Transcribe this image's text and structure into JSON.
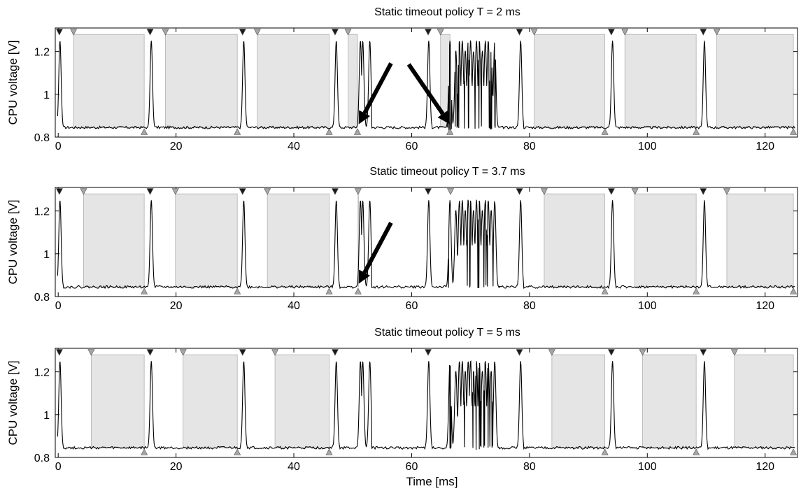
{
  "chart_data": [
    {
      "type": "line",
      "title": "Static timeout policy T = 2 ms",
      "ylabel": "CPU voltage [V]",
      "xlabel": "",
      "xlim": [
        -0.5,
        125.5
      ],
      "ylim": [
        0.8,
        1.31
      ],
      "x_ticks": [
        0,
        20,
        40,
        60,
        80,
        100,
        120
      ],
      "y_ticks": [
        0.8,
        1,
        1.2
      ],
      "baseline_voltage": 0.845,
      "peak_voltage": 1.25,
      "bursts": [
        {
          "start": -0.2,
          "end": 0.9,
          "peaks": [
            0.3
          ]
        },
        {
          "start": 15.1,
          "end": 16.4,
          "peaks": [
            15.8
          ]
        },
        {
          "start": 31.0,
          "end": 32.1,
          "peaks": [
            31.5
          ]
        },
        {
          "start": 46.6,
          "end": 47.8,
          "peaks": [
            47.2
          ]
        },
        {
          "start": 50.7,
          "end": 53.2,
          "peaks": [
            51.3,
            51.7,
            52.9
          ]
        },
        {
          "start": 62.4,
          "end": 63.5,
          "peaks": [
            62.9
          ]
        },
        {
          "start": 65.8,
          "end": 74.9,
          "peaks": [
            66.5,
            67.5,
            68.1,
            68.6,
            69.1,
            69.6,
            70.0,
            70.5,
            71.0,
            71.5,
            72.0,
            72.5,
            73.0,
            73.5,
            74.1
          ]
        },
        {
          "start": 77.9,
          "end": 79.0,
          "peaks": [
            78.5
          ]
        },
        {
          "start": 93.5,
          "end": 94.7,
          "peaks": [
            94.1
          ]
        },
        {
          "start": 109.1,
          "end": 110.3,
          "peaks": [
            109.7
          ]
        }
      ],
      "sleep_intervals": [
        [
          2.6,
          14.6
        ],
        [
          18.2,
          30.4
        ],
        [
          33.8,
          46.0
        ],
        [
          49.2,
          50.8
        ],
        [
          64.9,
          66.5
        ],
        [
          80.8,
          92.8
        ],
        [
          96.2,
          108.3
        ],
        [
          111.8,
          124.8
        ]
      ],
      "markers_top_dark": [
        0.2,
        15.6,
        31.3,
        47.0,
        62.8,
        78.3,
        93.9,
        109.5
      ],
      "markers_top_light": [
        2.6,
        18.2,
        33.8,
        49.2,
        64.9,
        80.8,
        96.2,
        111.8
      ],
      "markers_bottom": [
        14.6,
        30.4,
        46.0,
        50.8,
        66.5,
        92.8,
        108.3,
        124.8
      ],
      "arrows": [
        {
          "from": [
            56.5,
            1.145
          ],
          "to": [
            51.0,
            0.86
          ]
        },
        {
          "from": [
            59.5,
            1.14
          ],
          "to": [
            66.5,
            0.86
          ]
        }
      ]
    },
    {
      "type": "line",
      "title": "Static timeout policy T = 3.7 ms",
      "ylabel": "CPU voltage [V]",
      "xlabel": "",
      "xlim": [
        -0.5,
        125.5
      ],
      "ylim": [
        0.8,
        1.31
      ],
      "x_ticks": [
        0,
        20,
        40,
        60,
        80,
        100,
        120
      ],
      "y_ticks": [
        0.8,
        1,
        1.2
      ],
      "baseline_voltage": 0.845,
      "peak_voltage": 1.25,
      "bursts": [
        {
          "start": -0.2,
          "end": 0.9,
          "peaks": [
            0.3
          ]
        },
        {
          "start": 15.1,
          "end": 16.4,
          "peaks": [
            15.8
          ]
        },
        {
          "start": 31.0,
          "end": 32.1,
          "peaks": [
            31.5
          ]
        },
        {
          "start": 46.6,
          "end": 47.8,
          "peaks": [
            47.2
          ]
        },
        {
          "start": 50.7,
          "end": 53.2,
          "peaks": [
            51.3,
            51.7,
            52.9
          ]
        },
        {
          "start": 62.4,
          "end": 63.5,
          "peaks": [
            62.9
          ]
        },
        {
          "start": 65.8,
          "end": 74.9,
          "peaks": [
            66.5,
            67.5,
            68.1,
            68.6,
            69.1,
            69.6,
            70.0,
            70.5,
            71.0,
            71.5,
            72.0,
            72.5,
            73.0,
            73.5,
            74.1
          ]
        },
        {
          "start": 77.9,
          "end": 79.0,
          "peaks": [
            78.5
          ]
        },
        {
          "start": 93.5,
          "end": 94.7,
          "peaks": [
            94.1
          ]
        },
        {
          "start": 109.1,
          "end": 110.3,
          "peaks": [
            109.7
          ]
        }
      ],
      "sleep_intervals": [
        [
          4.3,
          14.6
        ],
        [
          19.9,
          30.4
        ],
        [
          35.5,
          46.0
        ],
        [
          50.9,
          50.95
        ],
        [
          82.5,
          92.8
        ],
        [
          97.9,
          108.3
        ],
        [
          113.5,
          124.8
        ]
      ],
      "markers_top_dark": [
        0.2,
        15.6,
        31.3,
        47.0,
        62.8,
        78.3,
        93.9,
        109.5
      ],
      "markers_top_light": [
        4.3,
        19.9,
        35.5,
        50.9,
        66.6,
        82.5,
        97.9,
        113.5
      ],
      "markers_bottom": [
        14.6,
        30.4,
        46.0,
        50.9,
        92.8,
        108.3,
        124.8
      ],
      "arrows": [
        {
          "from": [
            56.5,
            1.145
          ],
          "to": [
            51.0,
            0.86
          ]
        }
      ]
    },
    {
      "type": "line",
      "title": "Static timeout policy T = 5 ms",
      "ylabel": "CPU voltage [V]",
      "xlabel": "Time [ms]",
      "xlim": [
        -0.5,
        125.5
      ],
      "ylim": [
        0.8,
        1.31
      ],
      "x_ticks": [
        0,
        20,
        40,
        60,
        80,
        100,
        120
      ],
      "y_ticks": [
        0.8,
        1,
        1.2
      ],
      "baseline_voltage": 0.845,
      "peak_voltage": 1.25,
      "bursts": [
        {
          "start": -0.2,
          "end": 0.9,
          "peaks": [
            0.3
          ]
        },
        {
          "start": 15.1,
          "end": 16.4,
          "peaks": [
            15.8
          ]
        },
        {
          "start": 31.0,
          "end": 32.1,
          "peaks": [
            31.5
          ]
        },
        {
          "start": 46.6,
          "end": 47.8,
          "peaks": [
            47.2
          ]
        },
        {
          "start": 50.7,
          "end": 53.2,
          "peaks": [
            51.3,
            51.7,
            52.9
          ]
        },
        {
          "start": 62.4,
          "end": 63.5,
          "peaks": [
            62.9
          ]
        },
        {
          "start": 65.8,
          "end": 74.9,
          "peaks": [
            66.5,
            67.5,
            68.1,
            68.6,
            69.1,
            69.6,
            70.0,
            70.5,
            71.0,
            71.5,
            72.0,
            72.5,
            73.0,
            73.5,
            74.1
          ]
        },
        {
          "start": 77.9,
          "end": 79.0,
          "peaks": [
            78.5
          ]
        },
        {
          "start": 93.5,
          "end": 94.7,
          "peaks": [
            94.1
          ]
        },
        {
          "start": 109.1,
          "end": 110.3,
          "peaks": [
            109.7
          ]
        }
      ],
      "sleep_intervals": [
        [
          5.6,
          14.6
        ],
        [
          21.2,
          30.4
        ],
        [
          36.8,
          46.0
        ],
        [
          83.8,
          92.8
        ],
        [
          99.2,
          108.3
        ],
        [
          114.8,
          124.8
        ]
      ],
      "markers_top_dark": [
        0.2,
        15.6,
        31.3,
        47.0,
        62.8,
        78.3,
        93.9,
        109.5
      ],
      "markers_top_light": [
        5.6,
        21.2,
        36.8,
        83.8,
        99.2,
        114.8
      ],
      "markers_bottom": [
        14.6,
        30.4,
        46.0,
        92.8,
        108.3,
        124.8
      ],
      "arrows": []
    }
  ],
  "colors": {
    "signal": "#000000",
    "sleep_fill": "#e5e5e5",
    "sleep_edge": "#b0b0b0",
    "marker_dark": "#1a1a1a",
    "marker_light": "#a6a6a6",
    "axes": "#000000"
  }
}
